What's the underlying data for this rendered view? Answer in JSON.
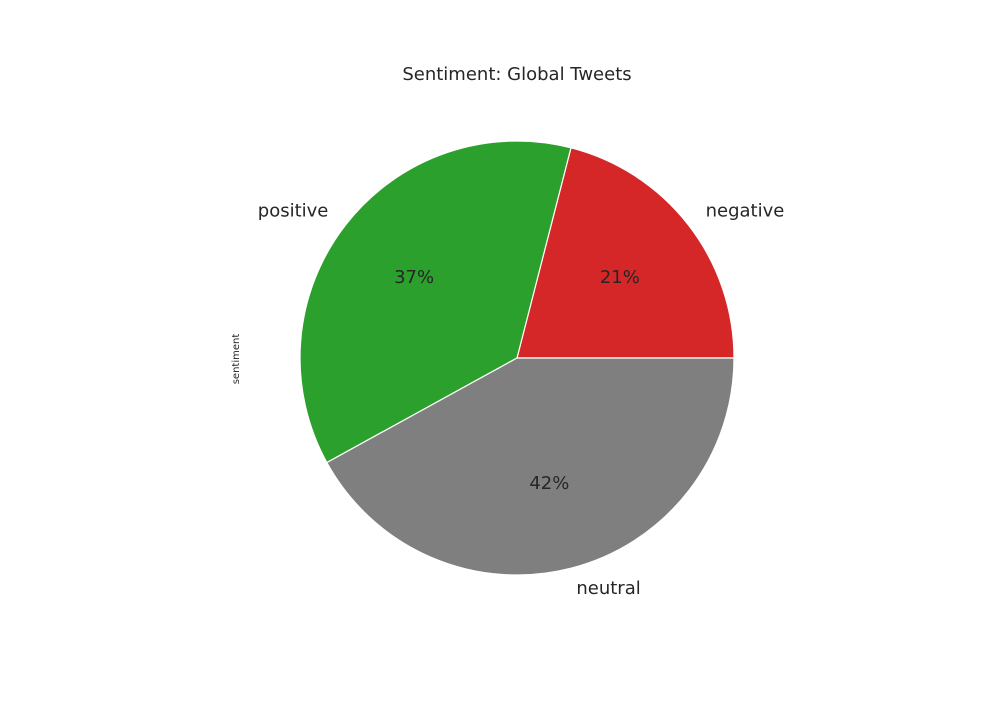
{
  "chart_data": {
    "type": "pie",
    "title": "Sentiment: Global Tweets",
    "ylabel": "sentiment",
    "xlabel": "",
    "categories": [
      "negative",
      "positive",
      "neutral"
    ],
    "values": [
      21,
      37,
      42
    ],
    "autopct_labels": [
      "21%",
      "37%",
      "42%"
    ],
    "colors": [
      "#d62728",
      "#2ca02c",
      "#7f7f7f"
    ],
    "start_angle_deg": 0,
    "direction": "counterclockwise",
    "wedge_edge_color": "#ffffff",
    "legend": "none",
    "grid": false
  }
}
